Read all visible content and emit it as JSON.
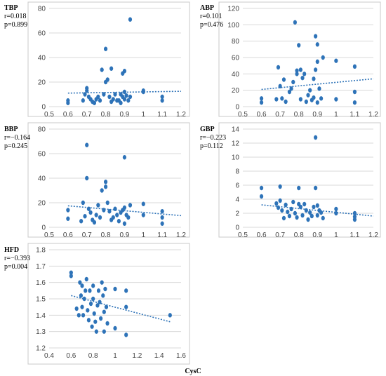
{
  "chart_data": [
    {
      "type": "scatter",
      "title": "TBP",
      "r_text": "r=0.018",
      "p_text": "p=0.899",
      "xlim": [
        0.5,
        1.2
      ],
      "ylim": [
        0,
        80
      ],
      "xticks": [
        0.5,
        0.6,
        0.7,
        0.8,
        0.9,
        1,
        1.1,
        1.2
      ],
      "yticks": [
        0,
        20,
        40,
        60,
        80
      ],
      "xtick_labels": [
        "0.5",
        "0.6",
        "0.7",
        "0.8",
        "0.9",
        "1",
        "1.1",
        "1.2"
      ],
      "ytick_labels": [
        "0",
        "20",
        "40",
        "60",
        "80"
      ],
      "grid": true,
      "trend": [
        [
          0.6,
          11
        ],
        [
          1.2,
          12.5
        ]
      ],
      "points": [
        [
          0.6,
          5
        ],
        [
          0.6,
          3
        ],
        [
          0.68,
          5
        ],
        [
          0.69,
          10
        ],
        [
          0.7,
          13
        ],
        [
          0.7,
          15
        ],
        [
          0.71,
          8
        ],
        [
          0.72,
          6
        ],
        [
          0.73,
          4
        ],
        [
          0.74,
          3
        ],
        [
          0.75,
          6
        ],
        [
          0.76,
          8
        ],
        [
          0.77,
          5
        ],
        [
          0.78,
          30
        ],
        [
          0.79,
          10
        ],
        [
          0.8,
          20
        ],
        [
          0.8,
          47
        ],
        [
          0.81,
          22
        ],
        [
          0.82,
          8
        ],
        [
          0.83,
          31
        ],
        [
          0.83,
          4
        ],
        [
          0.84,
          6
        ],
        [
          0.85,
          10
        ],
        [
          0.86,
          5
        ],
        [
          0.87,
          5
        ],
        [
          0.88,
          3
        ],
        [
          0.88,
          10
        ],
        [
          0.89,
          27
        ],
        [
          0.89,
          8
        ],
        [
          0.9,
          29
        ],
        [
          0.9,
          12
        ],
        [
          0.9,
          6
        ],
        [
          0.91,
          9
        ],
        [
          0.92,
          5
        ],
        [
          0.93,
          71
        ],
        [
          0.93,
          8
        ],
        [
          1.0,
          12
        ],
        [
          1.0,
          13
        ],
        [
          1.1,
          8
        ],
        [
          1.1,
          5
        ]
      ]
    },
    {
      "type": "scatter",
      "title": "ABP",
      "r_text": "r=0.101",
      "p_text": "p=0.476",
      "xlim": [
        0.5,
        1.2
      ],
      "ylim": [
        0,
        120
      ],
      "xticks": [
        0.5,
        0.6,
        0.7,
        0.8,
        0.9,
        1,
        1.1,
        1.2
      ],
      "yticks": [
        0,
        20,
        40,
        60,
        80,
        100,
        120
      ],
      "xtick_labels": [
        "0.5",
        "0.6",
        "0.7",
        "0.8",
        "0.9",
        "1",
        "1.1",
        "1.2"
      ],
      "ytick_labels": [
        "0",
        "20",
        "40",
        "60",
        "80",
        "100",
        "120"
      ],
      "grid": true,
      "trend": [
        [
          0.6,
          21
        ],
        [
          1.2,
          34
        ]
      ],
      "points": [
        [
          0.6,
          5
        ],
        [
          0.6,
          10
        ],
        [
          0.68,
          9
        ],
        [
          0.69,
          48
        ],
        [
          0.7,
          25
        ],
        [
          0.71,
          10
        ],
        [
          0.72,
          33
        ],
        [
          0.73,
          6
        ],
        [
          0.75,
          18
        ],
        [
          0.76,
          22
        ],
        [
          0.77,
          30
        ],
        [
          0.78,
          103
        ],
        [
          0.79,
          40
        ],
        [
          0.79,
          44
        ],
        [
          0.8,
          75
        ],
        [
          0.81,
          9
        ],
        [
          0.81,
          45
        ],
        [
          0.82,
          35
        ],
        [
          0.83,
          40
        ],
        [
          0.84,
          6
        ],
        [
          0.85,
          14
        ],
        [
          0.86,
          20
        ],
        [
          0.87,
          8
        ],
        [
          0.88,
          11
        ],
        [
          0.88,
          34
        ],
        [
          0.89,
          86
        ],
        [
          0.89,
          45
        ],
        [
          0.9,
          76
        ],
        [
          0.9,
          55
        ],
        [
          0.9,
          5
        ],
        [
          0.91,
          22
        ],
        [
          0.92,
          10
        ],
        [
          0.93,
          60
        ],
        [
          1.0,
          56
        ],
        [
          1.0,
          9
        ],
        [
          1.1,
          49
        ],
        [
          1.1,
          18
        ],
        [
          1.1,
          5
        ]
      ]
    },
    {
      "type": "scatter",
      "title": "BBP",
      "r_text": "r=−0.164",
      "p_text": "p=0.245",
      "xlim": [
        0.5,
        1.2
      ],
      "ylim": [
        0,
        80
      ],
      "xticks": [
        0.5,
        0.6,
        0.7,
        0.8,
        0.9,
        1,
        1.1,
        1.2
      ],
      "yticks": [
        0,
        20,
        40,
        60,
        80
      ],
      "xtick_labels": [
        "0.5",
        "0.6",
        "0.7",
        "0.8",
        "0.9",
        "1",
        "1.1",
        "1.2"
      ],
      "ytick_labels": [
        "0",
        "20",
        "40",
        "60",
        "80"
      ],
      "grid": true,
      "trend": [
        [
          0.6,
          17.5
        ],
        [
          1.2,
          9.5
        ]
      ],
      "points": [
        [
          0.6,
          14
        ],
        [
          0.6,
          7
        ],
        [
          0.67,
          5
        ],
        [
          0.68,
          20
        ],
        [
          0.69,
          9
        ],
        [
          0.7,
          67
        ],
        [
          0.7,
          40
        ],
        [
          0.71,
          15
        ],
        [
          0.72,
          12
        ],
        [
          0.73,
          6
        ],
        [
          0.74,
          4
        ],
        [
          0.75,
          10
        ],
        [
          0.76,
          18
        ],
        [
          0.77,
          8
        ],
        [
          0.78,
          30
        ],
        [
          0.79,
          14
        ],
        [
          0.8,
          37
        ],
        [
          0.8,
          33
        ],
        [
          0.81,
          20
        ],
        [
          0.82,
          13
        ],
        [
          0.83,
          6
        ],
        [
          0.84,
          8
        ],
        [
          0.85,
          15
        ],
        [
          0.86,
          10
        ],
        [
          0.87,
          5
        ],
        [
          0.88,
          12
        ],
        [
          0.89,
          14
        ],
        [
          0.9,
          57
        ],
        [
          0.9,
          16
        ],
        [
          0.9,
          3
        ],
        [
          0.91,
          10
        ],
        [
          0.92,
          8
        ],
        [
          0.93,
          18
        ],
        [
          1.0,
          19
        ],
        [
          1.0,
          10
        ],
        [
          1.1,
          13
        ],
        [
          1.1,
          8
        ],
        [
          1.1,
          3
        ]
      ]
    },
    {
      "type": "scatter",
      "title": "GBP",
      "r_text": "r=−0.223",
      "p_text": "p=0.112",
      "xlim": [
        0.5,
        1.2
      ],
      "ylim": [
        0,
        14
      ],
      "xticks": [
        0.5,
        0.6,
        0.7,
        0.8,
        0.9,
        1,
        1.1,
        1.2
      ],
      "yticks": [
        0,
        2,
        4,
        6,
        8,
        10,
        12,
        14
      ],
      "xtick_labels": [
        "0.5",
        "0.6",
        "0.7",
        "0.8",
        "0.9",
        "1",
        "1.1",
        "1.2"
      ],
      "ytick_labels": [
        "0",
        "2",
        "4",
        "6",
        "8",
        "10",
        "12",
        "14"
      ],
      "grid": true,
      "trend": [
        [
          0.6,
          3.2
        ],
        [
          1.2,
          1.6
        ]
      ],
      "points": [
        [
          0.6,
          5.6
        ],
        [
          0.6,
          4.4
        ],
        [
          0.68,
          3.4
        ],
        [
          0.69,
          2.8
        ],
        [
          0.7,
          5.8
        ],
        [
          0.7,
          3.8
        ],
        [
          0.71,
          2.4
        ],
        [
          0.72,
          1.3
        ],
        [
          0.73,
          3.2
        ],
        [
          0.74,
          2.2
        ],
        [
          0.75,
          1.6
        ],
        [
          0.76,
          2.6
        ],
        [
          0.77,
          3.6
        ],
        [
          0.78,
          2.0
        ],
        [
          0.79,
          1.4
        ],
        [
          0.8,
          5.6
        ],
        [
          0.8,
          3.3
        ],
        [
          0.81,
          2.9
        ],
        [
          0.82,
          1.7
        ],
        [
          0.83,
          3.3
        ],
        [
          0.84,
          2.4
        ],
        [
          0.85,
          1.1
        ],
        [
          0.86,
          2.1
        ],
        [
          0.87,
          1.6
        ],
        [
          0.88,
          2.9
        ],
        [
          0.89,
          12.8
        ],
        [
          0.89,
          5.6
        ],
        [
          0.9,
          3.1
        ],
        [
          0.9,
          1.7
        ],
        [
          0.91,
          2.4
        ],
        [
          0.92,
          2.1
        ],
        [
          0.93,
          1.3
        ],
        [
          1.0,
          2.6
        ],
        [
          1.0,
          2.0
        ],
        [
          1.1,
          2.0
        ],
        [
          1.1,
          1.5
        ],
        [
          1.1,
          1.1
        ]
      ]
    },
    {
      "type": "scatter",
      "title": "HFD",
      "r_text": "r=−0.393",
      "p_text": "p=0.004",
      "xlabel": "CysC",
      "xlim": [
        0.4,
        1.6
      ],
      "ylim": [
        1.2,
        1.8
      ],
      "xticks": [
        0.4,
        0.6,
        0.8,
        1,
        1.2,
        1.4,
        1.6
      ],
      "yticks": [
        1.2,
        1.3,
        1.4,
        1.5,
        1.6,
        1.7,
        1.8
      ],
      "xtick_labels": [
        "0.4",
        "0.6",
        "0.8",
        "1",
        "1.2",
        "1.4",
        "1.6"
      ],
      "ytick_labels": [
        "1.2",
        "1.3",
        "1.4",
        "1.5",
        "1.6",
        "1.7",
        "1.8"
      ],
      "grid": true,
      "trend": [
        [
          0.6,
          1.52
        ],
        [
          1.5,
          1.36
        ]
      ],
      "points": [
        [
          0.6,
          1.66
        ],
        [
          0.6,
          1.64
        ],
        [
          0.65,
          1.44
        ],
        [
          0.67,
          1.4
        ],
        [
          0.68,
          1.6
        ],
        [
          0.69,
          1.52
        ],
        [
          0.7,
          1.58
        ],
        [
          0.7,
          1.45
        ],
        [
          0.71,
          1.4
        ],
        [
          0.72,
          1.5
        ],
        [
          0.73,
          1.55
        ],
        [
          0.74,
          1.62
        ],
        [
          0.75,
          1.43
        ],
        [
          0.76,
          1.37
        ],
        [
          0.77,
          1.55
        ],
        [
          0.78,
          1.47
        ],
        [
          0.79,
          1.33
        ],
        [
          0.8,
          1.58
        ],
        [
          0.8,
          1.5
        ],
        [
          0.81,
          1.41
        ],
        [
          0.82,
          1.36
        ],
        [
          0.83,
          1.3
        ],
        [
          0.84,
          1.46
        ],
        [
          0.85,
          1.55
        ],
        [
          0.86,
          1.48
        ],
        [
          0.87,
          1.38
        ],
        [
          0.88,
          1.6
        ],
        [
          0.89,
          1.52
        ],
        [
          0.9,
          1.42
        ],
        [
          0.9,
          1.3
        ],
        [
          0.91,
          1.56
        ],
        [
          0.92,
          1.45
        ],
        [
          0.93,
          1.35
        ],
        [
          1.0,
          1.56
        ],
        [
          1.0,
          1.32
        ],
        [
          1.1,
          1.55
        ],
        [
          1.1,
          1.45
        ],
        [
          1.1,
          1.28
        ],
        [
          1.5,
          1.4
        ]
      ]
    }
  ]
}
